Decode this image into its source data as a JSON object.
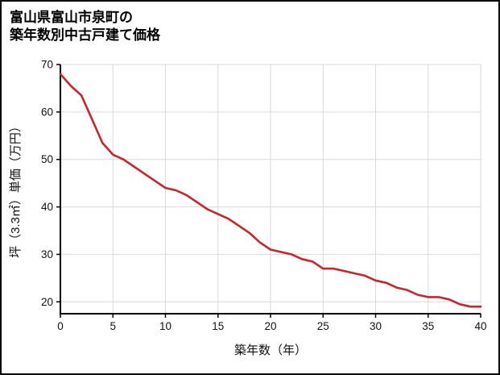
{
  "title": {
    "line1": "富山県富山市泉町の",
    "line2": "築年数別中古戸建て価格"
  },
  "chart_data": {
    "type": "line",
    "title": "富山県富山市泉町の築年数別中古戸建て価格",
    "xlabel": "築年数（年）",
    "ylabel": "坪（3.3㎡）単価（万円）",
    "series_name": "坪単価",
    "x": [
      0,
      1,
      2,
      3,
      4,
      5,
      6,
      7,
      8,
      9,
      10,
      11,
      12,
      13,
      14,
      15,
      16,
      17,
      18,
      19,
      20,
      21,
      22,
      23,
      24,
      25,
      26,
      27,
      28,
      29,
      30,
      31,
      32,
      33,
      34,
      35,
      36,
      37,
      38,
      39,
      40
    ],
    "values": [
      68,
      65.5,
      63.5,
      58.5,
      53.5,
      51,
      50,
      48.5,
      47,
      45.5,
      44,
      43.5,
      42.5,
      41,
      39.5,
      38.5,
      37.5,
      36,
      34.5,
      32.5,
      31,
      30.5,
      30,
      29,
      28.5,
      27,
      27,
      26.5,
      26,
      25.5,
      24.5,
      24,
      23,
      22.5,
      21.5,
      21,
      21,
      20.5,
      19.5,
      19,
      19
    ],
    "xlim": [
      0,
      40
    ],
    "ylim": [
      17.5,
      70
    ],
    "xticks": [
      0,
      5,
      10,
      15,
      20,
      25,
      30,
      35,
      40
    ],
    "yticks": [
      20,
      30,
      40,
      50,
      60,
      70
    ],
    "grid": true,
    "legend": "none"
  },
  "colors": {
    "line": "#c9242b",
    "grid": "#d9d9d9",
    "axis": "#000000",
    "tick_label": "#111111",
    "background": "#ffffff",
    "border": "#000000"
  }
}
